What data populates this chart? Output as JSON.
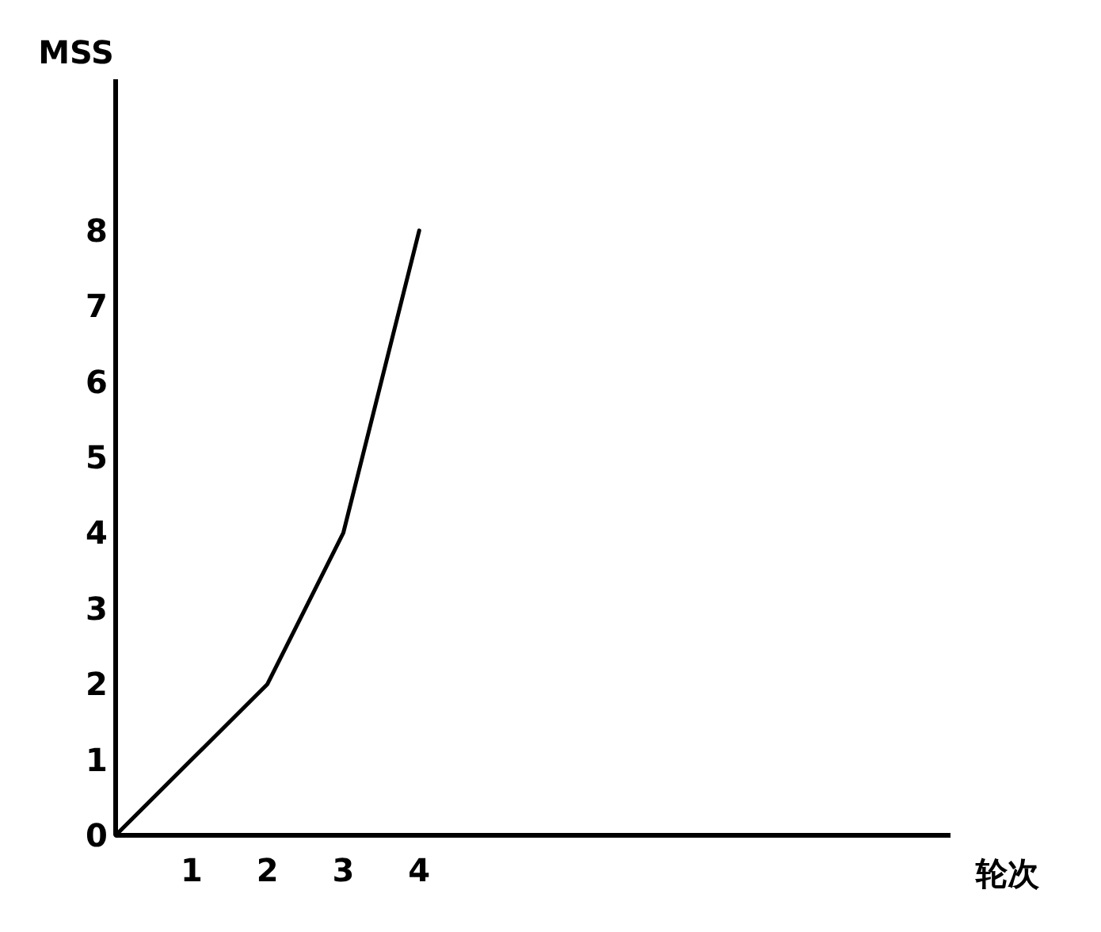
{
  "chart_data": {
    "type": "line",
    "xlabel": "轮次",
    "ylabel": "MSS",
    "x": [
      0,
      1,
      2,
      3,
      4
    ],
    "series": [
      {
        "color": "#000000",
        "values": [
          0,
          1,
          2,
          4,
          8
        ]
      }
    ],
    "xlim": [
      0,
      11
    ],
    "ylim": [
      0,
      10
    ],
    "xticks": [
      1,
      2,
      3,
      4
    ],
    "yticks": [
      0,
      1,
      2,
      3,
      4,
      5,
      6,
      7,
      8
    ],
    "grid": false,
    "marker": "none",
    "line_style": "solid"
  }
}
